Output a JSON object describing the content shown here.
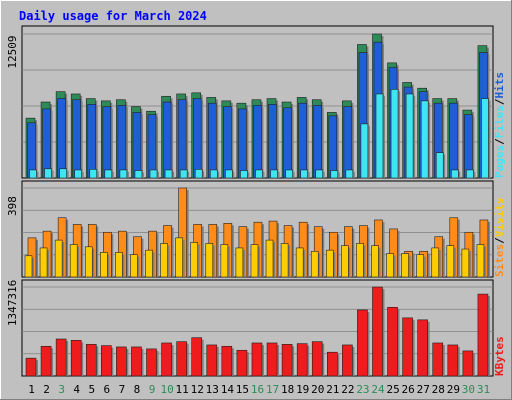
{
  "colors": {
    "background": "#c0c0c0",
    "plot_background": "#c0c0c0",
    "title": "#0000ff",
    "hits_top": "#2e8b57",
    "hits": "#1e5fd6",
    "files": "#3fe6f2",
    "pages": "#3fe6f2",
    "visits": "#ffcc00",
    "sites": "#ff8c1a",
    "kbytes": "#ee1c1c",
    "weekend_label": "#2e8b57",
    "weekday_label": "#000000"
  },
  "chart_data": {
    "title": "Daily usage for March 2024",
    "type": "bar",
    "x": [
      "1",
      "2",
      "3",
      "4",
      "5",
      "6",
      "7",
      "8",
      "9",
      "10",
      "11",
      "12",
      "13",
      "14",
      "15",
      "16",
      "17",
      "18",
      "19",
      "20",
      "21",
      "22",
      "23",
      "24",
      "25",
      "26",
      "27",
      "28",
      "29",
      "30",
      "31"
    ],
    "weekend_days": [
      3,
      9,
      10,
      16,
      17,
      23,
      24,
      30,
      31
    ],
    "panels": [
      {
        "id": "top",
        "max_label": "12509",
        "max": 12509,
        "legend": [
          "Pages",
          "Files",
          "Hits"
        ],
        "series": [
          {
            "name": "Hits",
            "values": [
              5200,
              6600,
              7500,
              7300,
              6900,
              6700,
              6800,
              6200,
              5800,
              7100,
              7300,
              7400,
              7000,
              6700,
              6500,
              6800,
              6900,
              6600,
              7000,
              6800,
              5700,
              6700,
              11600,
              12509,
              10000,
              8300,
              7800,
              6900,
              6900,
              5900,
              11500
            ]
          },
          {
            "name": "Files",
            "values": [
              4800,
              6000,
              6900,
              6800,
              6400,
              6200,
              6300,
              5700,
              5500,
              6600,
              6800,
              6900,
              6500,
              6200,
              6000,
              6300,
              6400,
              6100,
              6500,
              6300,
              5400,
              6200,
              10900,
              11800,
              9600,
              7900,
              7500,
              6500,
              6500,
              5500,
              10900
            ]
          },
          {
            "name": "Pages",
            "values": [
              700,
              800,
              800,
              700,
              750,
              700,
              700,
              650,
              700,
              700,
              700,
              750,
              700,
              700,
              650,
              700,
              700,
              700,
              700,
              700,
              650,
              700,
              4700,
              7300,
              7700,
              7300,
              6700,
              2200,
              700,
              700,
              6900
            ]
          }
        ]
      },
      {
        "id": "mid",
        "max_label": "398",
        "max": 398,
        "legend": [
          "Sites",
          "Visits"
        ],
        "series": [
          {
            "name": "Visits",
            "values": [
              95,
              130,
              165,
              145,
              135,
              110,
              110,
              100,
              120,
              150,
              175,
              155,
              150,
              145,
              130,
              145,
              165,
              150,
              130,
              115,
              120,
              140,
              150,
              140,
              105,
              105,
              100,
              130,
              140,
              125,
              145
            ]
          },
          {
            "name": "Sites",
            "values": [
              175,
              205,
              265,
              235,
              235,
              200,
              205,
              180,
              205,
              230,
              398,
              235,
              235,
              240,
              225,
              245,
              250,
              230,
              245,
              225,
              200,
              225,
              230,
              255,
              215,
              115,
              115,
              180,
              265,
              200,
              255
            ]
          }
        ]
      },
      {
        "id": "bot",
        "max_label": "1347316",
        "max": 1347316,
        "legend": [
          "KBytes"
        ],
        "series": [
          {
            "name": "KBytes",
            "values": [
              270000,
              450000,
              560000,
              540000,
              480000,
              460000,
              440000,
              440000,
              410000,
              500000,
              520000,
              580000,
              470000,
              450000,
              390000,
              500000,
              500000,
              480000,
              490000,
              520000,
              360000,
              470000,
              1000000,
              1347316,
              1040000,
              880000,
              850000,
              500000,
              470000,
              380000,
              1240000
            ]
          }
        ]
      }
    ]
  }
}
